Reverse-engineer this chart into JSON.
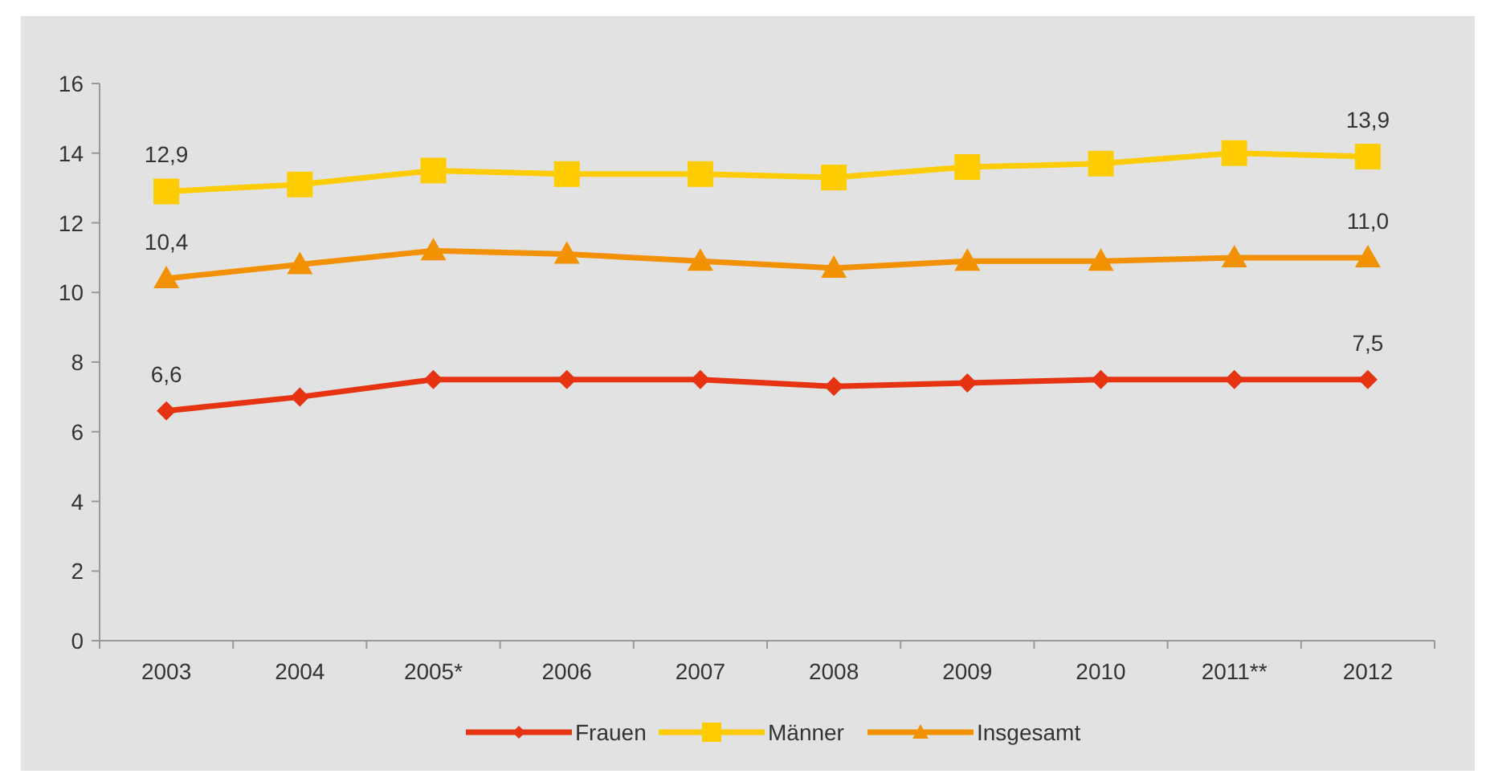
{
  "chart_data": {
    "type": "line",
    "categories": [
      "2003",
      "2004",
      "2005*",
      "2006",
      "2007",
      "2008",
      "2009",
      "2010",
      "2011**",
      "2012"
    ],
    "series": [
      {
        "name": "Frauen",
        "color": "#e63312",
        "marker": "diamond",
        "values": [
          6.6,
          7.0,
          7.5,
          7.5,
          7.5,
          7.3,
          7.4,
          7.5,
          7.5,
          7.5
        ],
        "value_labels": [
          "6,6",
          null,
          null,
          null,
          null,
          null,
          null,
          null,
          null,
          "7,5"
        ]
      },
      {
        "name": "Männer",
        "color": "#ffcc00",
        "marker": "square",
        "values": [
          12.9,
          13.1,
          13.5,
          13.4,
          13.4,
          13.3,
          13.6,
          13.7,
          14.0,
          13.9
        ],
        "value_labels": [
          "12,9",
          null,
          null,
          null,
          null,
          null,
          null,
          null,
          null,
          "13,9"
        ]
      },
      {
        "name": "Insgesamt",
        "color": "#f39200",
        "marker": "triangle",
        "values": [
          10.4,
          10.8,
          11.2,
          11.1,
          10.9,
          10.7,
          10.9,
          10.9,
          11.0,
          11.0
        ],
        "value_labels": [
          "10,4",
          null,
          null,
          null,
          null,
          null,
          null,
          null,
          null,
          "11,0"
        ]
      }
    ],
    "ylim": [
      0,
      16
    ],
    "yticks": [
      0,
      2,
      4,
      6,
      8,
      10,
      12,
      14,
      16
    ],
    "grid": false,
    "legend": "bottom",
    "line_style": "solid"
  }
}
